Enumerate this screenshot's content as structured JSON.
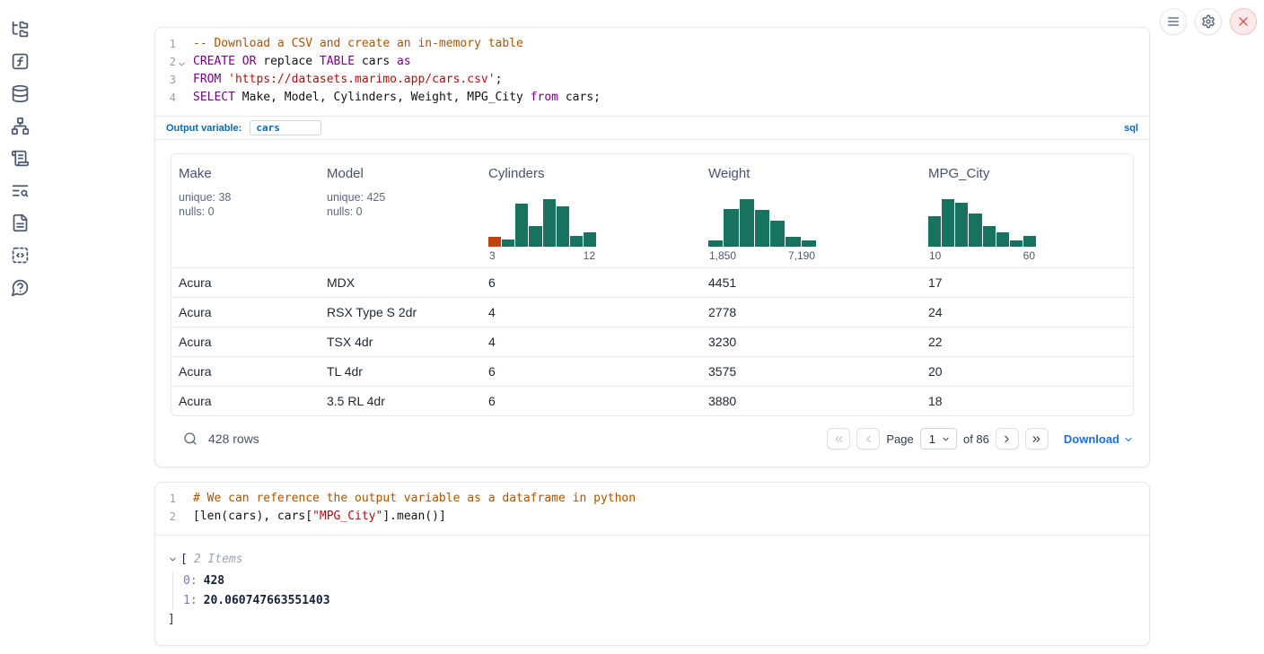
{
  "sidebar": {
    "icons": [
      "file-tree-icon",
      "function-square-icon",
      "database-icon",
      "dependency-graph-icon",
      "scroll-icon",
      "text-search-icon",
      "document-icon",
      "snippets-icon",
      "help-icon"
    ]
  },
  "topbar": {
    "icons": [
      "menu-icon",
      "gear-icon",
      "close-icon"
    ]
  },
  "sql_cell": {
    "lines": [
      {
        "n": "1",
        "fold": false,
        "tokens": [
          {
            "c": "comment",
            "t": "-- Download a CSV and create an in-memory table"
          }
        ]
      },
      {
        "n": "2",
        "fold": true,
        "tokens": [
          {
            "c": "kw",
            "t": "CREATE"
          },
          {
            "c": "plain",
            "t": " "
          },
          {
            "c": "kw",
            "t": "OR"
          },
          {
            "c": "plain",
            "t": " replace "
          },
          {
            "c": "kw",
            "t": "TABLE"
          },
          {
            "c": "plain",
            "t": " cars "
          },
          {
            "c": "kw",
            "t": "as"
          }
        ]
      },
      {
        "n": "3",
        "fold": false,
        "tokens": [
          {
            "c": "kw",
            "t": "FROM"
          },
          {
            "c": "plain",
            "t": " "
          },
          {
            "c": "str",
            "t": "'https://datasets.marimo.app/cars.csv'"
          },
          {
            "c": "plain",
            "t": ";"
          }
        ]
      },
      {
        "n": "4",
        "fold": false,
        "tokens": [
          {
            "c": "kw",
            "t": "SELECT"
          },
          {
            "c": "plain",
            "t": " Make, Model, Cylinders, Weight, MPG_City "
          },
          {
            "c": "kw",
            "t": "from"
          },
          {
            "c": "plain",
            "t": " cars;"
          }
        ]
      }
    ],
    "output_variable_label": "Output variable:",
    "output_variable_value": "cars",
    "language_badge": "sql"
  },
  "table": {
    "columns": [
      {
        "name": "Make",
        "stats": [
          "unique: 38",
          "nulls: 0"
        ]
      },
      {
        "name": "Model",
        "stats": [
          "unique: 425",
          "nulls: 0"
        ]
      },
      {
        "name": "Cylinders",
        "hist": 0
      },
      {
        "name": "Weight",
        "hist": 1
      },
      {
        "name": "MPG_City",
        "hist": 2
      }
    ],
    "rows": [
      [
        "Acura",
        "MDX",
        "6",
        "4451",
        "17"
      ],
      [
        "Acura",
        "RSX Type S 2dr",
        "4",
        "2778",
        "24"
      ],
      [
        "Acura",
        "TSX 4dr",
        "4",
        "3230",
        "22"
      ],
      [
        "Acura",
        "TL 4dr",
        "6",
        "3575",
        "20"
      ],
      [
        "Acura",
        "3.5 RL 4dr",
        "6",
        "3880",
        "18"
      ]
    ],
    "footer": {
      "row_count": "428 rows",
      "page_label": "Page",
      "page_value": "1",
      "of_label": "of 86",
      "download_label": "Download"
    }
  },
  "python_cell": {
    "lines": [
      {
        "n": "1",
        "fold": false,
        "tokens": [
          {
            "c": "comment",
            "t": "# We can reference the output variable as a dataframe in python"
          }
        ]
      },
      {
        "n": "2",
        "fold": false,
        "tokens": [
          {
            "c": "plain",
            "t": "[len(cars), cars["
          },
          {
            "c": "str",
            "t": "\"MPG_City\""
          },
          {
            "c": "plain",
            "t": "].mean()]"
          }
        ]
      }
    ]
  },
  "python_output": {
    "bracket_open": "[",
    "items_label": "2 Items",
    "entries": [
      {
        "key": "0:",
        "value": "428"
      },
      {
        "key": "1:",
        "value": "20.060747663551403"
      }
    ],
    "bracket_close": "]"
  },
  "chart_data": [
    {
      "type": "bar",
      "subtype": "column-summary-histogram",
      "title": "Cylinders",
      "x_min_label": "3",
      "x_max_label": "12",
      "values_normalized": [
        0.21,
        0.15,
        0.9,
        0.44,
        1.0,
        0.85,
        0.23,
        0.3
      ],
      "bar_flags": [
        "highlight",
        "normal",
        "normal",
        "normal",
        "normal",
        "normal",
        "normal",
        "normal"
      ]
    },
    {
      "type": "bar",
      "subtype": "column-summary-histogram",
      "title": "Weight",
      "x_min_label": "1,850",
      "x_max_label": "7,190",
      "values_normalized": [
        0.13,
        0.8,
        1.0,
        0.78,
        0.55,
        0.2,
        0.13
      ],
      "bar_flags": [
        "normal",
        "normal",
        "normal",
        "normal",
        "normal",
        "normal",
        "normal"
      ]
    },
    {
      "type": "bar",
      "subtype": "column-summary-histogram",
      "title": "MPG_City",
      "x_min_label": "10",
      "x_max_label": "60",
      "values_normalized": [
        0.65,
        1.0,
        0.93,
        0.7,
        0.43,
        0.3,
        0.13,
        0.23
      ],
      "bar_flags": [
        "normal",
        "normal",
        "normal",
        "normal",
        "normal",
        "normal",
        "normal",
        "normal"
      ]
    }
  ],
  "colors": {
    "hist_green": "#177360",
    "hist_highlight_orange": "#c2410c",
    "accent_blue": "#0b68b0",
    "download_blue": "#1d6fd1",
    "close_red": "#e05252"
  }
}
